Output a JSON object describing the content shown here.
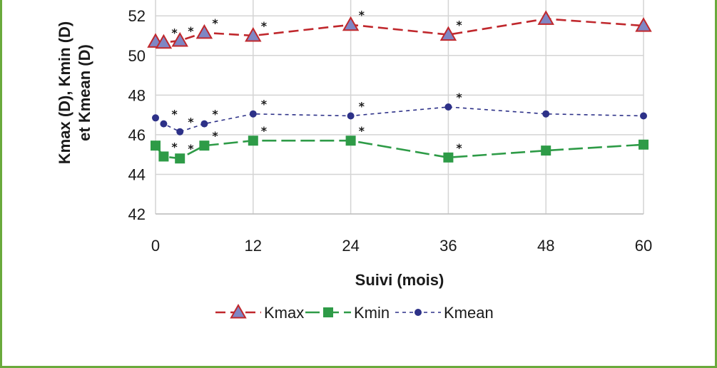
{
  "chart_data": {
    "type": "line",
    "xlabel": "Suivi (mois)",
    "ylabel_lines": [
      "Kmax (D), Kmin (D)",
      "et Kmean (D)"
    ],
    "x_ticks": [
      "0",
      "12",
      "24",
      "36",
      "48",
      "60"
    ],
    "y_ticks": [
      "42",
      "44",
      "46",
      "48",
      "50",
      "52"
    ],
    "xlim": [
      0,
      60
    ],
    "ylim": [
      42,
      52.8
    ],
    "grid": true,
    "legend_position": "bottom-center",
    "annotation_marker": "*",
    "series": [
      {
        "name": "Kmax",
        "color": "#c0282d",
        "marker": "triangle",
        "marker_fill": "#7f86c4",
        "line_style": "long-dash",
        "x": [
          0,
          1,
          3,
          6,
          12,
          24,
          36,
          48,
          60
        ],
        "y": [
          50.7,
          50.65,
          50.75,
          51.15,
          51.0,
          51.55,
          51.05,
          51.85,
          51.5
        ],
        "significant": [
          false,
          true,
          true,
          true,
          true,
          true,
          true,
          false,
          false
        ]
      },
      {
        "name": "Kmin",
        "color": "#2e9b47",
        "marker": "square",
        "marker_fill": "#2e9b47",
        "line_style": "dash",
        "x": [
          0,
          1,
          3,
          6,
          12,
          24,
          36,
          48,
          60
        ],
        "y": [
          45.45,
          44.9,
          44.8,
          45.45,
          45.7,
          45.7,
          44.85,
          45.2,
          45.5
        ],
        "significant": [
          false,
          true,
          true,
          true,
          true,
          true,
          true,
          false,
          false
        ]
      },
      {
        "name": "Kmean",
        "color": "#2d3188",
        "marker": "circle",
        "marker_fill": "#2d3188",
        "line_style": "short-dash",
        "x": [
          0,
          1,
          3,
          6,
          12,
          24,
          36,
          48,
          60
        ],
        "y": [
          46.85,
          46.55,
          46.15,
          46.55,
          47.05,
          46.95,
          47.4,
          47.05,
          46.95
        ],
        "significant": [
          false,
          true,
          true,
          true,
          true,
          true,
          true,
          false,
          false
        ]
      }
    ]
  }
}
